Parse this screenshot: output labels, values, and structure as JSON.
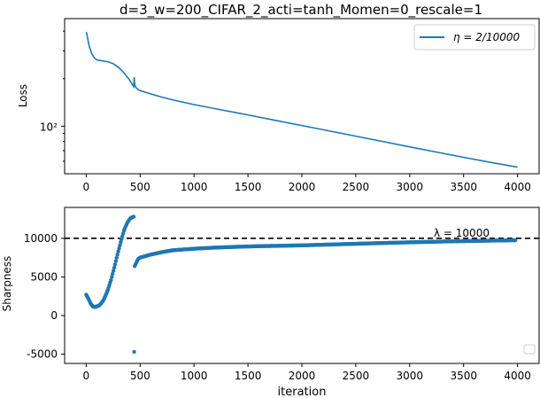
{
  "colors": {
    "series": "#1f77b4",
    "axes": "#000000",
    "dashed": "#000000"
  },
  "chart_data": [
    {
      "type": "line",
      "title": "d=3_w=200_CIFAR_2_acti=tanh_Momen=0_rescale=1",
      "xlabel": "",
      "ylabel": "Loss",
      "yscale": "log",
      "xlim": [
        -200,
        4200
      ],
      "xticks": [
        0,
        500,
        1000,
        1500,
        2000,
        2500,
        3000,
        3500,
        4000
      ],
      "xtick_labels": [
        "0",
        "500",
        "1000",
        "1500",
        "2000",
        "2500",
        "3000",
        "3500",
        "4000"
      ],
      "ytick_labels": [
        "10²"
      ],
      "legend": {
        "position": "top-right",
        "entries": [
          {
            "name": "η = 2/10000"
          }
        ]
      },
      "series": [
        {
          "name": "η = 2/10000",
          "x": [
            0,
            10,
            25,
            50,
            75,
            100,
            150,
            200,
            250,
            300,
            350,
            400,
            440,
            445,
            450,
            460,
            480,
            500,
            600,
            700,
            800,
            1000,
            1250,
            1500,
            1750,
            2000,
            2250,
            2500,
            2750,
            3000,
            3250,
            3500,
            3750,
            4000
          ],
          "y": [
            395,
            372,
            327,
            289,
            271,
            263,
            259,
            256,
            249,
            236,
            218,
            197,
            178,
            204,
            183,
            176,
            171,
            168,
            160,
            153,
            147,
            137,
            127,
            118,
            109,
            101,
            93.5,
            86.5,
            80.0,
            74.0,
            68.5,
            63.5,
            59.0,
            55.0
          ]
        }
      ]
    },
    {
      "type": "scatter",
      "title": "",
      "xlabel": "iteration",
      "ylabel": "Sharpness",
      "xlim": [
        -200,
        4200
      ],
      "ylim": [
        -6200,
        14000
      ],
      "xticks": [
        0,
        500,
        1000,
        1500,
        2000,
        2500,
        3000,
        3500,
        4000
      ],
      "xtick_labels": [
        "0",
        "500",
        "1000",
        "1500",
        "2000",
        "2500",
        "3000",
        "3500",
        "4000"
      ],
      "yticks": [
        -5000,
        0,
        5000,
        10000
      ],
      "ytick_labels": [
        "-5000",
        "0",
        "5000",
        "10000"
      ],
      "reference_line": {
        "y": 10000,
        "style": "dashed",
        "label": "λ = 10000"
      },
      "outlier": {
        "x": 445,
        "y": -4700
      },
      "series": [
        {
          "name": "",
          "x": [
            0,
            20,
            40,
            60,
            80,
            100,
            120,
            140,
            160,
            180,
            200,
            230,
            260,
            290,
            320,
            350,
            380,
            410,
            440,
            450,
            480,
            500,
            600,
            700,
            800,
            900,
            1000,
            1200,
            1400,
            1600,
            1800,
            2000,
            2200,
            2400,
            2600,
            2800,
            3000,
            3200,
            3400,
            3600,
            3800,
            3980
          ],
          "y": [
            2700,
            2200,
            1600,
            1200,
            1100,
            1200,
            1300,
            1600,
            2000,
            2600,
            3300,
            4600,
            6200,
            7900,
            9500,
            11000,
            12000,
            12600,
            12800,
            6400,
            7300,
            7500,
            7900,
            8200,
            8450,
            8550,
            8650,
            8800,
            8900,
            8980,
            9030,
            9090,
            9170,
            9250,
            9330,
            9410,
            9480,
            9550,
            9610,
            9660,
            9710,
            9750
          ]
        }
      ]
    }
  ]
}
